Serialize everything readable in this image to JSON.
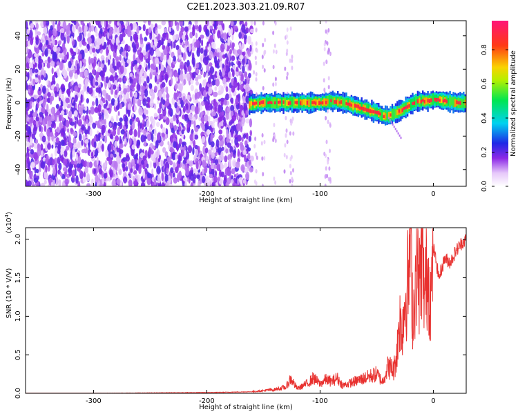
{
  "title": "C2E1.2023.303.21.09.R07",
  "chart_data": [
    {
      "type": "heatmap",
      "xlabel": "Height of straight line (km)",
      "ylabel": "Frequency (Hz)",
      "xlim": [
        -360,
        29
      ],
      "ylim": [
        -50,
        49
      ],
      "xticks": [
        -300,
        -200,
        -100,
        0
      ],
      "yticks": [
        -40,
        -20,
        0,
        20,
        40
      ],
      "colorbar": {
        "label": "Normalized spectral amplitude",
        "range": [
          0,
          0.97
        ],
        "ticks": [
          "0.0",
          "0.2",
          "0.4",
          "0.6",
          "0.8"
        ],
        "colormap": "rainbow (white-purple-blue-cyan-green-yellow-red-magenta)"
      },
      "noise_region_x": [
        -360,
        -163
      ],
      "signal_ridge": {
        "x": [
          -163,
          -150,
          -125,
          -100,
          -90,
          -80,
          -70,
          -60,
          -50,
          -45,
          -40,
          -30,
          -20,
          -15,
          -10,
          -5,
          0,
          10,
          20,
          29
        ],
        "freq": [
          -1,
          0,
          0,
          0,
          1,
          0,
          -2,
          -4,
          -6,
          -8,
          -8,
          -5,
          -1,
          1,
          1,
          1,
          2,
          1,
          0,
          0
        ],
        "peak_amplitude": 0.95
      }
    },
    {
      "type": "line",
      "xlabel": "Height of straight line (km)",
      "ylabel": "SNR (10 * V/V)",
      "y_multiplier": "(x10^4)",
      "xlim": [
        -360,
        29
      ],
      "ylim": [
        0,
        2.15
      ],
      "xticks": [
        -300,
        -200,
        -100,
        0
      ],
      "yticks": [
        "0.0",
        "0.5",
        "1.0",
        "1.5",
        "2.0"
      ],
      "line_color": "#e8312f",
      "series": [
        {
          "x": [
            -360,
            -300,
            -200,
            -160,
            -140,
            -130,
            -126,
            -120,
            -115,
            -110,
            -106,
            -100,
            -95,
            -90,
            -85,
            -80,
            -70,
            -60,
            -50,
            -45,
            -40,
            -35,
            -32,
            -30,
            -28,
            -25,
            -22,
            -20,
            -18,
            -15,
            -12,
            -10,
            -8,
            -5,
            -2,
            0,
            5,
            10,
            15,
            20,
            25,
            29
          ],
          "y": [
            0.0,
            0.0,
            0.01,
            0.02,
            0.05,
            0.08,
            0.19,
            0.06,
            0.1,
            0.14,
            0.2,
            0.12,
            0.18,
            0.15,
            0.2,
            0.1,
            0.15,
            0.2,
            0.25,
            0.15,
            0.35,
            0.3,
            0.55,
            1.0,
            0.8,
            1.2,
            1.5,
            2.1,
            0.9,
            1.7,
            1.4,
            1.8,
            1.3,
            1.6,
            1.2,
            1.9,
            1.5,
            1.75,
            1.7,
            1.85,
            1.95,
            2.0
          ]
        }
      ]
    }
  ]
}
